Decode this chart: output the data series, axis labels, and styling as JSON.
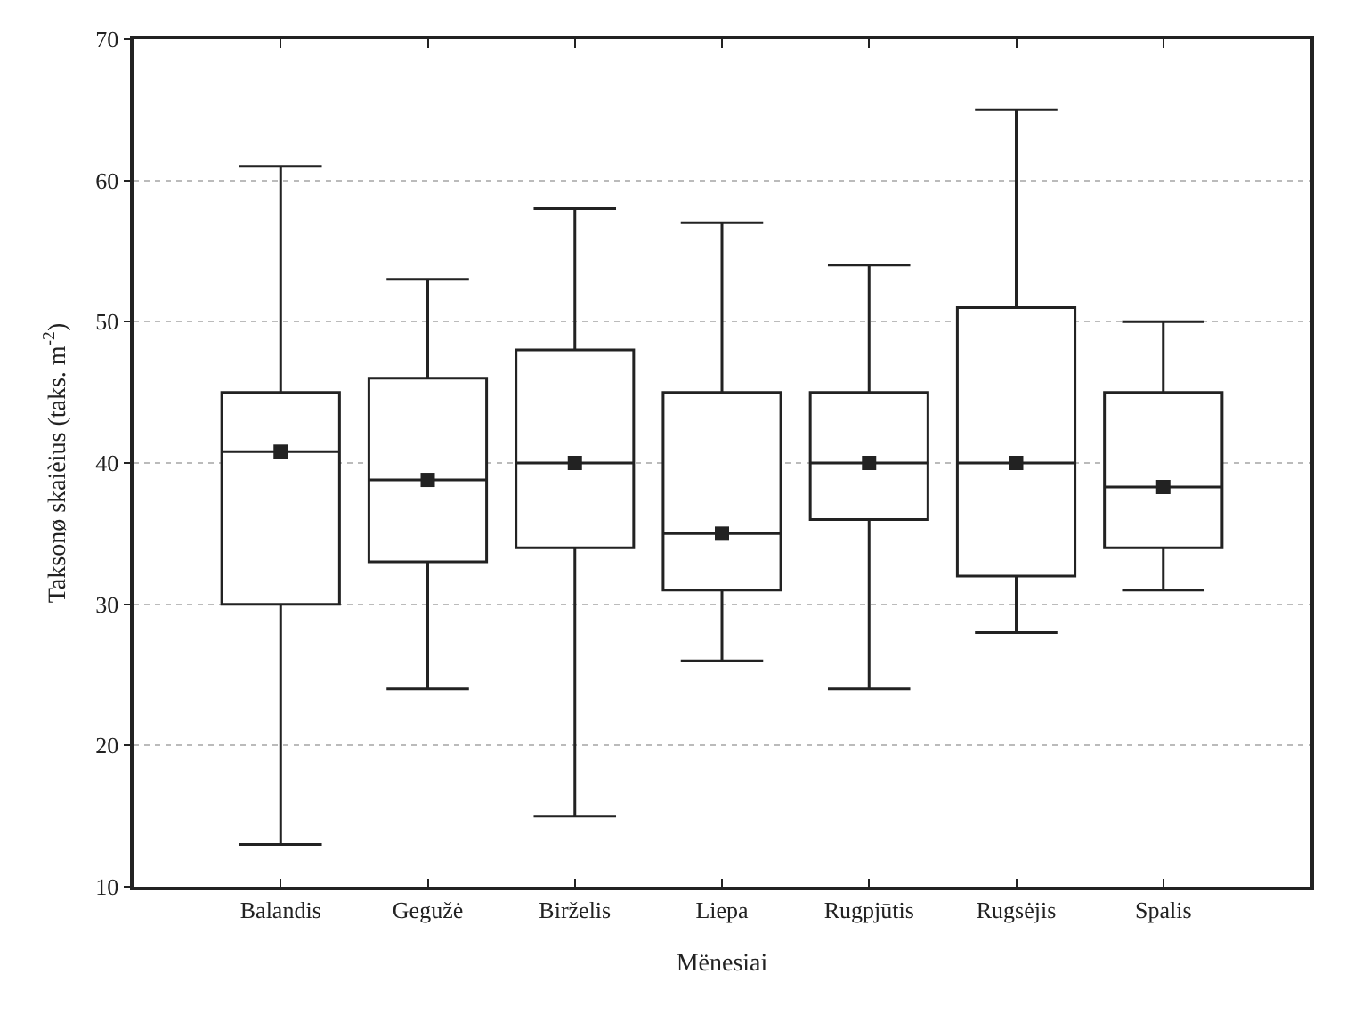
{
  "chart_data": {
    "type": "box",
    "xlabel": "Mënesiai",
    "ylabel": "Taksonø skaièius (taks. m$^{-2}$)",
    "categories": [
      "Balandis",
      "Gegužė",
      "Birželis",
      "Liepa",
      "Rugpjūtis",
      "Rugsėjis",
      "Spalis"
    ],
    "boxes": [
      {
        "low": 13,
        "q1": 30,
        "median": 40.8,
        "q3": 45,
        "high": 61
      },
      {
        "low": 24,
        "q1": 33,
        "median": 38.8,
        "q3": 46,
        "high": 53
      },
      {
        "low": 15,
        "q1": 34,
        "median": 40,
        "q3": 48,
        "high": 58
      },
      {
        "low": 26,
        "q1": 31,
        "median": 35,
        "q3": 45,
        "high": 57
      },
      {
        "low": 24,
        "q1": 36,
        "median": 40,
        "q3": 45,
        "high": 54
      },
      {
        "low": 28,
        "q1": 32,
        "median": 40,
        "q3": 51,
        "high": 65
      },
      {
        "low": 31,
        "q1": 34,
        "median": 38.3,
        "q3": 45,
        "high": 50
      }
    ],
    "series": [
      {
        "type": "scatter",
        "x": [
          "Balandis",
          "Gegužė",
          "Birželis",
          "Liepa",
          "Rugpjūtis",
          "Rugsėjis",
          "Spalis"
        ],
        "values": [
          40.8,
          38.8,
          40,
          35,
          40,
          40,
          38.3
        ],
        "color": "#222222"
      }
    ],
    "ylim": [
      10,
      70
    ],
    "yticks": [
      10,
      20,
      30,
      40,
      50,
      60,
      70
    ],
    "grid": "y",
    "marker": "square"
  }
}
